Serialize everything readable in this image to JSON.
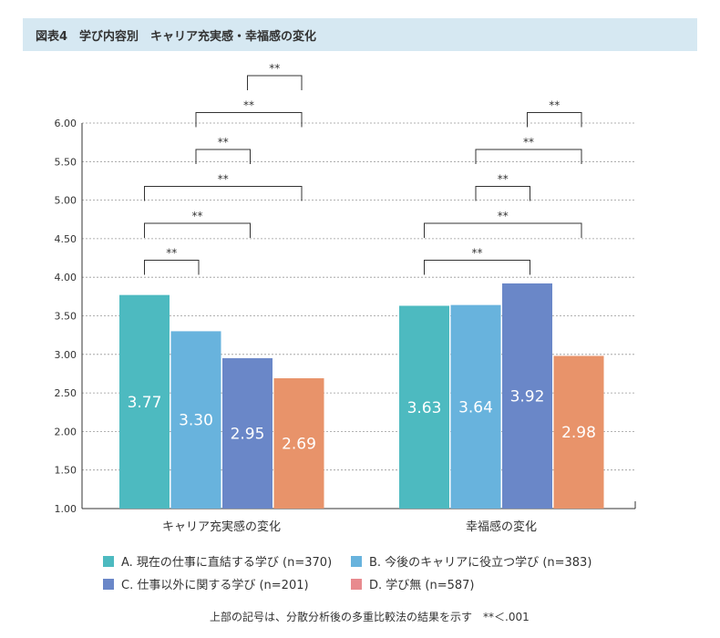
{
  "title": "図表4　学び内容別　キャリア充実感・幸福感の変化",
  "footnote": "上部の記号は、分散分析後の多重比較法の結果を示す　**＜.001",
  "chart_data": {
    "type": "bar",
    "categories": [
      "キャリア充実感の変化",
      "幸福感の変化"
    ],
    "series": [
      {
        "name": "A. 現在の仕事に直結する学び (n=370)",
        "key": "A",
        "color": "#4dbac0",
        "legend_color": "#4dbac0",
        "values": [
          3.77,
          3.63
        ]
      },
      {
        "name": "B. 今後のキャリアに役立つ学び (n=383)",
        "key": "B",
        "color": "#68b3dd",
        "legend_color": "#68b3dd",
        "values": [
          3.3,
          3.64
        ]
      },
      {
        "name": "C. 仕事以外に関する学び (n=201)",
        "key": "C",
        "color": "#6a87c8",
        "legend_color": "#6a87c8",
        "values": [
          2.95,
          3.92
        ]
      },
      {
        "name": "D. 学び無 (n=587)",
        "key": "D",
        "color": "#e8936a",
        "legend_color": "#e88a8e",
        "values": [
          2.69,
          2.98
        ]
      }
    ],
    "ylim": [
      1.0,
      6.0
    ],
    "yticks": [
      "1.00",
      "1.50",
      "2.00",
      "2.50",
      "3.00",
      "3.50",
      "4.00",
      "4.50",
      "5.00",
      "5.50",
      "6.00"
    ],
    "grid": true,
    "legend_placement": "bottom",
    "significance_label": "**",
    "significance": [
      [
        [
          "C",
          "D"
        ],
        [
          "B",
          "D"
        ],
        [
          "B",
          "C"
        ],
        [
          "A",
          "D"
        ],
        [
          "A",
          "C"
        ],
        [
          "A",
          "B"
        ]
      ],
      [
        [
          "C",
          "D"
        ],
        [
          "B",
          "D"
        ],
        [
          "B",
          "C"
        ],
        [
          "A",
          "D"
        ],
        [
          "A",
          "C"
        ]
      ]
    ]
  }
}
